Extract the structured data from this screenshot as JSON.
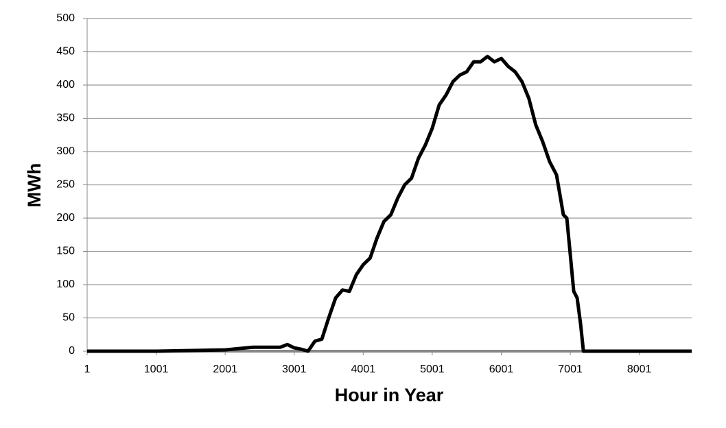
{
  "chart_data": {
    "type": "line",
    "x_label": "Hour in Year",
    "y_label": "MWh",
    "xlim": [
      1,
      8760
    ],
    "xticks": [
      1,
      1001,
      2001,
      3001,
      4001,
      5001,
      6001,
      7001,
      8001
    ],
    "ylim": [
      0,
      500
    ],
    "yticks": [
      0,
      50,
      100,
      150,
      200,
      250,
      300,
      350,
      400,
      450,
      500
    ],
    "grid": true,
    "series": [
      {
        "name": "MWh",
        "color": "#000000",
        "x": [
          1,
          1001,
          2001,
          2401,
          2801,
          2901,
          3001,
          3101,
          3201,
          3301,
          3401,
          3501,
          3601,
          3701,
          3801,
          3901,
          4001,
          4101,
          4201,
          4301,
          4401,
          4501,
          4601,
          4701,
          4801,
          4901,
          5001,
          5101,
          5201,
          5301,
          5401,
          5501,
          5601,
          5701,
          5801,
          5901,
          6001,
          6101,
          6201,
          6301,
          6401,
          6501,
          6601,
          6701,
          6801,
          6901,
          6951,
          7001,
          7051,
          7101,
          7151,
          7191,
          8760
        ],
        "values": [
          0,
          0,
          2,
          6,
          6,
          10,
          5,
          3,
          0,
          15,
          18,
          50,
          80,
          92,
          90,
          115,
          130,
          140,
          170,
          195,
          205,
          230,
          250,
          260,
          290,
          310,
          335,
          370,
          385,
          405,
          415,
          420,
          435,
          435,
          443,
          435,
          440,
          428,
          420,
          405,
          380,
          340,
          315,
          285,
          265,
          205,
          200,
          145,
          90,
          80,
          40,
          0,
          0
        ]
      }
    ]
  }
}
